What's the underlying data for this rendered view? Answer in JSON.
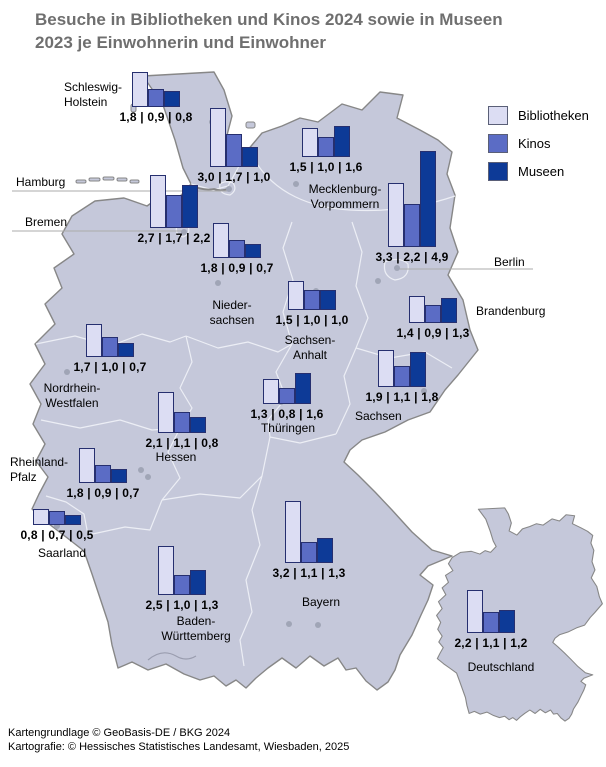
{
  "title": "Besuche in Bibliotheken und Kinos 2024 sowie in Museen\n2023 je Einwohnerin und Einwohner",
  "legend": {
    "items": [
      {
        "label": "Bibliotheken",
        "color": "#dcddf3"
      },
      {
        "label": "Kinos",
        "color": "#5b6cc5"
      },
      {
        "label": "Museen",
        "color": "#0d3a97"
      }
    ]
  },
  "map_colors": {
    "land": "#c5c8da",
    "coast_border": "#878787",
    "inner_border": "#eceef5",
    "bar_border": "#262f6f",
    "leader_line": "#ababab",
    "city_dot": "#a0a5b6"
  },
  "footer": {
    "line1": "Kartengrundlage © GeoBasis-DE / BKG 2024",
    "line2": "Kartografie: © Hessisches Statistisches Landesamt, Wiesbaden, 2025"
  },
  "chart_data": {
    "type": "bar",
    "title": "Besuche in Bibliotheken und Kinos 2024 sowie in Museen 2023 je Einwohnerin und Einwohner",
    "series_names": [
      "Bibliotheken",
      "Kinos",
      "Museen"
    ],
    "legend_position": "top-right",
    "regions": [
      {
        "name": "Schleswig-Holstein",
        "display_name": "Schleswig-\nHolstein",
        "values": [
          1.8,
          0.9,
          0.8
        ],
        "label": "1,8 | 0,9 | 0,8"
      },
      {
        "name": "Hamburg",
        "values": [
          3.0,
          1.7,
          1.0
        ],
        "label": "3,0 | 1,7 | 1,0"
      },
      {
        "name": "Bremen",
        "values": [
          2.7,
          1.7,
          2.2
        ],
        "label": "2,7 | 1,7 | 2,2"
      },
      {
        "name": "Mecklenburg-Vorpommern",
        "display_name": "Mecklenburg-\nVorpommern",
        "values": [
          1.5,
          1.0,
          1.6
        ],
        "label": "1,5 | 1,0 | 1,6"
      },
      {
        "name": "Berlin",
        "values": [
          3.3,
          2.2,
          4.9
        ],
        "label": "3,3 | 2,2 | 4,9"
      },
      {
        "name": "Niedersachsen",
        "display_name": "Nieder-\nsachsen",
        "values": [
          1.8,
          0.9,
          0.7
        ],
        "label": "1,8 | 0,9 | 0,7"
      },
      {
        "name": "Sachsen-Anhalt",
        "display_name": "Sachsen-\nAnhalt",
        "values": [
          1.5,
          1.0,
          1.0
        ],
        "label": "1,5 | 1,0 | 1,0"
      },
      {
        "name": "Brandenburg",
        "values": [
          1.4,
          0.9,
          1.3
        ],
        "label": "1,4 | 0,9 | 1,3"
      },
      {
        "name": "Nordrhein-Westfalen",
        "display_name": "Nordrhein-\nWestfalen",
        "values": [
          1.7,
          1.0,
          0.7
        ],
        "label": "1,7 | 1,0 | 0,7"
      },
      {
        "name": "Sachsen",
        "values": [
          1.9,
          1.1,
          1.8
        ],
        "label": "1,9 | 1,1 | 1,8"
      },
      {
        "name": "Thüringen",
        "values": [
          1.3,
          0.8,
          1.6
        ],
        "label": "1,3 | 0,8 | 1,6"
      },
      {
        "name": "Hessen",
        "values": [
          2.1,
          1.1,
          0.8
        ],
        "label": "2,1 | 1,1 | 0,8"
      },
      {
        "name": "Rheinland-Pfalz",
        "display_name": "Rheinland-\nPfalz",
        "values": [
          1.8,
          0.9,
          0.7
        ],
        "label": "1,8 | 0,9 | 0,7"
      },
      {
        "name": "Saarland",
        "values": [
          0.8,
          0.7,
          0.5
        ],
        "label": "0,8 | 0,7 | 0,5"
      },
      {
        "name": "Baden-Württemberg",
        "display_name": "Baden-\nWürttemberg",
        "values": [
          2.5,
          1.0,
          1.3
        ],
        "label": "2,5 | 1,0 | 1,3"
      },
      {
        "name": "Bayern",
        "values": [
          3.2,
          1.1,
          1.3
        ],
        "label": "3,2 | 1,1 | 1,3"
      },
      {
        "name": "Deutschland",
        "values": [
          2.2,
          1.1,
          1.2
        ],
        "label": "2,2 | 1,1 | 1,2"
      }
    ]
  }
}
